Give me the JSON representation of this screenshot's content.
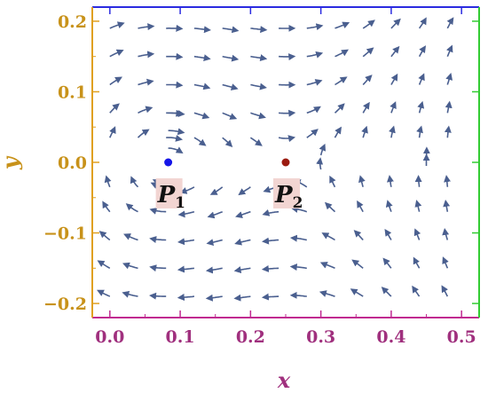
{
  "chart_data": {
    "type": "streamplot",
    "title": "",
    "xlabel": "x",
    "ylabel": "y",
    "xlim": [
      -0.025,
      0.525
    ],
    "ylim": [
      -0.22,
      0.22
    ],
    "x_ticks": [
      0.0,
      0.1,
      0.2,
      0.3,
      0.4,
      0.5
    ],
    "x_tick_labels": [
      "0.0",
      "0.1",
      "0.2",
      "0.3",
      "0.4",
      "0.5"
    ],
    "y_ticks": [
      0.2,
      0.1,
      0.0,
      -0.1,
      -0.2
    ],
    "y_tick_labels": [
      "0.2",
      "0.1",
      "0.0",
      "−0.1",
      "−0.2"
    ],
    "grid": false,
    "points": [
      {
        "name": "P1",
        "base": "P",
        "sub": "1",
        "x": 0.083,
        "y": 0.0,
        "color": "#1515e8",
        "type": "center"
      },
      {
        "name": "P2",
        "base": "P",
        "sub": "2",
        "x": 0.25,
        "y": 0.0,
        "color": "#9b1b10",
        "type": "saddle"
      }
    ],
    "stream_color": "#4a5f8f",
    "frame_colors": {
      "top": "#2b2be0",
      "bottom": "#c02a90",
      "left": "#e0a020",
      "right": "#33cc33"
    },
    "tick_label_colors": {
      "x": "#a0307e",
      "y": "#c8921a"
    },
    "label_box_color": "#f2d5d2"
  }
}
